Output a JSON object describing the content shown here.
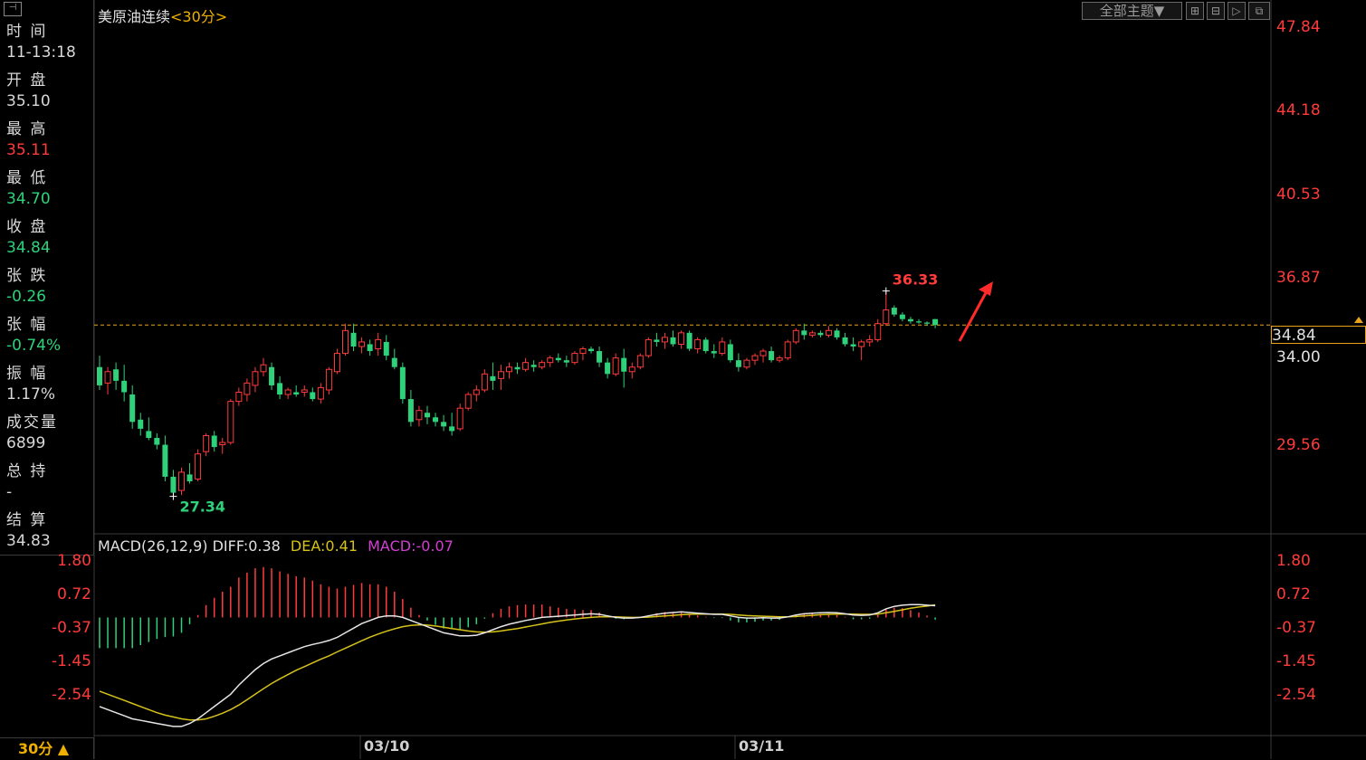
{
  "header": {
    "symbol": "美原油连续",
    "period_label": "<30分>",
    "theme_button": "全部主题▼"
  },
  "info_panel": {
    "time_label": "时 间",
    "time_value": "11-13:18",
    "open_label": "开 盘",
    "open_value": "35.10",
    "high_label": "最 高",
    "high_value": "35.11",
    "low_label": "最 低",
    "low_value": "34.70",
    "close_label": "收 盘",
    "close_value": "34.84",
    "change_label": "张 跌",
    "change_value": "-0.26",
    "change_pct_label": "张 幅",
    "change_pct_value": "-0.74%",
    "amplitude_label": "振 幅",
    "amplitude_value": "1.17%",
    "volume_label": "成交量",
    "volume_value": "6899",
    "open_interest_label": "总 持",
    "open_interest_value": "-",
    "settlement_label": "结 算",
    "settlement_value": "34.83"
  },
  "macd_header": {
    "params": "MACD(26,12,9)",
    "diff": "DIFF:0.38",
    "dea": "DEA:0.41",
    "macd": "MACD:-0.07"
  },
  "current_price_tag": "34.84",
  "period_button": "30分 ▲",
  "colors": {
    "up": "#ff3b3b",
    "down": "#2fd27a",
    "current_line": "#e8a31a",
    "diff_line": "#e6e6e6",
    "dea_line": "#d6c21a",
    "macd_text": "#d040d0",
    "annotation_arrow": "#ff2a2a"
  },
  "chart_data": [
    {
      "type": "candlestick",
      "x_tick_labels": [
        "03/10",
        "03/11"
      ],
      "y_tick_labels": [
        "47.84",
        "44.18",
        "40.53",
        "36.87",
        "34.00",
        "29.56"
      ],
      "ylim": [
        27.0,
        47.84
      ],
      "current_price": 34.84,
      "high_marker": "36.33",
      "low_marker": "27.34",
      "candles": [
        [
          33.0,
          33.5,
          32.0,
          32.2
        ],
        [
          32.3,
          33.0,
          31.8,
          32.8
        ],
        [
          32.9,
          33.2,
          32.0,
          32.4
        ],
        [
          32.4,
          33.1,
          31.5,
          31.9
        ],
        [
          31.8,
          32.2,
          30.3,
          30.6
        ],
        [
          30.7,
          31.0,
          30.0,
          30.3
        ],
        [
          30.2,
          30.8,
          29.8,
          29.9
        ],
        [
          29.9,
          30.1,
          29.4,
          29.6
        ],
        [
          29.6,
          30.0,
          28.0,
          28.2
        ],
        [
          28.2,
          28.5,
          27.34,
          27.5
        ],
        [
          27.6,
          28.6,
          27.4,
          28.4
        ],
        [
          28.3,
          28.8,
          27.9,
          28.0
        ],
        [
          28.1,
          29.4,
          28.0,
          29.2
        ],
        [
          29.3,
          30.1,
          29.1,
          30.0
        ],
        [
          30.0,
          30.2,
          29.3,
          29.5
        ],
        [
          29.6,
          29.9,
          29.2,
          29.7
        ],
        [
          29.7,
          31.6,
          29.6,
          31.5
        ],
        [
          31.5,
          32.1,
          31.3,
          31.9
        ],
        [
          31.8,
          32.5,
          31.5,
          32.3
        ],
        [
          32.2,
          33.0,
          31.9,
          32.8
        ],
        [
          32.8,
          33.4,
          32.6,
          33.1
        ],
        [
          33.0,
          33.2,
          32.0,
          32.2
        ],
        [
          32.3,
          32.6,
          31.6,
          31.8
        ],
        [
          31.8,
          32.1,
          31.6,
          32.0
        ],
        [
          31.9,
          32.2,
          31.7,
          31.8
        ],
        [
          31.9,
          32.2,
          31.7,
          32.0
        ],
        [
          31.9,
          32.1,
          31.5,
          31.6
        ],
        [
          31.6,
          32.3,
          31.4,
          32.1
        ],
        [
          32.0,
          33.0,
          31.8,
          32.9
        ],
        [
          32.8,
          33.8,
          32.7,
          33.6
        ],
        [
          33.6,
          34.9,
          33.5,
          34.6
        ],
        [
          34.5,
          34.9,
          33.7,
          33.9
        ],
        [
          33.9,
          34.3,
          33.6,
          34.1
        ],
        [
          34.0,
          34.2,
          33.5,
          33.7
        ],
        [
          33.8,
          34.5,
          33.5,
          34.2
        ],
        [
          34.1,
          34.4,
          33.3,
          33.5
        ],
        [
          33.4,
          33.8,
          32.9,
          33.0
        ],
        [
          33.0,
          33.2,
          31.4,
          31.6
        ],
        [
          31.6,
          32.0,
          30.4,
          30.6
        ],
        [
          30.7,
          31.3,
          30.4,
          31.1
        ],
        [
          31.0,
          31.3,
          30.5,
          30.8
        ],
        [
          30.8,
          31.0,
          30.4,
          30.6
        ],
        [
          30.6,
          30.9,
          30.2,
          30.4
        ],
        [
          30.4,
          31.0,
          30.0,
          30.2
        ],
        [
          30.3,
          31.4,
          30.2,
          31.2
        ],
        [
          31.2,
          31.9,
          31.1,
          31.8
        ],
        [
          31.8,
          32.2,
          31.5,
          32.0
        ],
        [
          32.0,
          32.9,
          31.9,
          32.7
        ],
        [
          32.6,
          33.2,
          32.0,
          32.4
        ],
        [
          32.5,
          33.1,
          32.0,
          32.8
        ],
        [
          32.8,
          33.2,
          32.5,
          33.0
        ],
        [
          33.0,
          33.2,
          32.7,
          32.9
        ],
        [
          32.9,
          33.4,
          32.8,
          33.2
        ],
        [
          33.1,
          33.3,
          32.8,
          33.0
        ],
        [
          33.0,
          33.3,
          32.9,
          33.2
        ],
        [
          33.2,
          33.5,
          33.0,
          33.4
        ],
        [
          33.4,
          33.6,
          33.2,
          33.3
        ],
        [
          33.3,
          33.5,
          33.0,
          33.2
        ],
        [
          33.2,
          33.7,
          33.1,
          33.6
        ],
        [
          33.6,
          33.9,
          33.3,
          33.8
        ],
        [
          33.8,
          33.9,
          33.6,
          33.7
        ],
        [
          33.7,
          33.9,
          33.0,
          33.2
        ],
        [
          33.2,
          33.4,
          32.5,
          32.7
        ],
        [
          32.7,
          33.6,
          32.6,
          33.4
        ],
        [
          33.4,
          33.8,
          32.1,
          32.8
        ],
        [
          32.8,
          33.2,
          32.5,
          33.0
        ],
        [
          33.0,
          33.6,
          32.9,
          33.5
        ],
        [
          33.5,
          34.3,
          33.4,
          34.2
        ],
        [
          34.2,
          34.5,
          33.9,
          34.1
        ],
        [
          34.1,
          34.5,
          33.8,
          34.3
        ],
        [
          34.3,
          34.6,
          33.9,
          34.0
        ],
        [
          34.0,
          34.6,
          33.8,
          34.5
        ],
        [
          34.5,
          34.6,
          33.7,
          33.8
        ],
        [
          33.8,
          34.3,
          33.6,
          34.2
        ],
        [
          34.2,
          34.3,
          33.6,
          33.7
        ],
        [
          33.7,
          34.0,
          33.4,
          33.6
        ],
        [
          33.6,
          34.3,
          33.5,
          34.1
        ],
        [
          34.0,
          34.2,
          33.2,
          33.3
        ],
        [
          33.3,
          33.6,
          32.8,
          33.0
        ],
        [
          33.0,
          33.4,
          32.9,
          33.3
        ],
        [
          33.3,
          33.6,
          33.1,
          33.5
        ],
        [
          33.5,
          33.8,
          33.2,
          33.7
        ],
        [
          33.7,
          33.9,
          33.2,
          33.3
        ],
        [
          33.3,
          33.5,
          33.2,
          33.4
        ],
        [
          33.4,
          34.2,
          33.3,
          34.1
        ],
        [
          34.1,
          34.7,
          34.0,
          34.6
        ],
        [
          34.6,
          34.9,
          34.2,
          34.4
        ],
        [
          34.4,
          34.6,
          34.3,
          34.5
        ],
        [
          34.5,
          34.6,
          34.3,
          34.4
        ],
        [
          34.4,
          34.8,
          34.3,
          34.6
        ],
        [
          34.6,
          34.7,
          34.2,
          34.3
        ],
        [
          34.3,
          34.5,
          33.9,
          34.0
        ],
        [
          34.0,
          34.3,
          33.7,
          33.9
        ],
        [
          33.9,
          34.2,
          33.3,
          34.1
        ],
        [
          34.1,
          34.4,
          33.9,
          34.2
        ],
        [
          34.2,
          35.1,
          34.1,
          34.9
        ],
        [
          34.9,
          36.33,
          34.8,
          35.5
        ],
        [
          35.6,
          35.7,
          35.2,
          35.3
        ],
        [
          35.3,
          35.4,
          35.0,
          35.1
        ],
        [
          35.1,
          35.2,
          34.9,
          35.0
        ],
        [
          35.0,
          35.1,
          34.9,
          34.95
        ],
        [
          34.95,
          35.0,
          34.8,
          34.9
        ],
        [
          35.1,
          35.11,
          34.7,
          34.84
        ]
      ]
    },
    {
      "type": "macd",
      "y_tick_labels": [
        "1.80",
        "0.72",
        "-0.37",
        "-1.45",
        "-2.54"
      ],
      "ylim": [
        -3.5,
        1.8
      ],
      "diff": [
        -2.9,
        -3.0,
        -3.1,
        -3.2,
        -3.3,
        -3.35,
        -3.4,
        -3.45,
        -3.5,
        -3.55,
        -3.55,
        -3.45,
        -3.3,
        -3.1,
        -2.9,
        -2.7,
        -2.5,
        -2.2,
        -1.95,
        -1.7,
        -1.5,
        -1.35,
        -1.25,
        -1.15,
        -1.05,
        -0.95,
        -0.88,
        -0.82,
        -0.75,
        -0.65,
        -0.5,
        -0.35,
        -0.2,
        -0.1,
        0.0,
        0.05,
        0.05,
        0.0,
        -0.1,
        -0.2,
        -0.3,
        -0.4,
        -0.5,
        -0.55,
        -0.6,
        -0.6,
        -0.58,
        -0.5,
        -0.4,
        -0.3,
        -0.22,
        -0.16,
        -0.1,
        -0.05,
        0.0,
        0.02,
        0.04,
        0.06,
        0.08,
        0.1,
        0.12,
        0.1,
        0.05,
        0.0,
        -0.02,
        -0.02,
        0.0,
        0.05,
        0.1,
        0.14,
        0.16,
        0.18,
        0.16,
        0.14,
        0.12,
        0.1,
        0.1,
        0.05,
        0.0,
        -0.02,
        -0.02,
        -0.01,
        -0.02,
        -0.02,
        0.02,
        0.08,
        0.12,
        0.14,
        0.15,
        0.16,
        0.15,
        0.12,
        0.08,
        0.07,
        0.08,
        0.15,
        0.28,
        0.36,
        0.4,
        0.42,
        0.42,
        0.4,
        0.38
      ],
      "dea": [
        -2.4,
        -2.5,
        -2.6,
        -2.7,
        -2.8,
        -2.9,
        -3.0,
        -3.1,
        -3.18,
        -3.24,
        -3.3,
        -3.34,
        -3.34,
        -3.3,
        -3.22,
        -3.12,
        -3.0,
        -2.85,
        -2.68,
        -2.5,
        -2.32,
        -2.15,
        -2.0,
        -1.86,
        -1.72,
        -1.6,
        -1.48,
        -1.36,
        -1.25,
        -1.12,
        -1.0,
        -0.88,
        -0.76,
        -0.64,
        -0.54,
        -0.45,
        -0.37,
        -0.3,
        -0.26,
        -0.24,
        -0.25,
        -0.28,
        -0.32,
        -0.36,
        -0.4,
        -0.44,
        -0.47,
        -0.48,
        -0.47,
        -0.44,
        -0.4,
        -0.36,
        -0.31,
        -0.26,
        -0.21,
        -0.16,
        -0.12,
        -0.08,
        -0.05,
        -0.02,
        0.0,
        0.02,
        0.02,
        0.02,
        0.01,
        0.0,
        0.0,
        0.01,
        0.03,
        0.05,
        0.07,
        0.09,
        0.1,
        0.11,
        0.11,
        0.11,
        0.11,
        0.1,
        0.08,
        0.06,
        0.05,
        0.04,
        0.03,
        0.02,
        0.02,
        0.03,
        0.05,
        0.07,
        0.09,
        0.1,
        0.11,
        0.11,
        0.11,
        0.1,
        0.1,
        0.11,
        0.15,
        0.2,
        0.25,
        0.3,
        0.34,
        0.37,
        0.41
      ],
      "macd_hist": [
        -1.0,
        -1.0,
        -1.0,
        -1.0,
        -1.0,
        -0.9,
        -0.8,
        -0.7,
        -0.64,
        -0.62,
        -0.5,
        -0.22,
        0.08,
        0.4,
        0.64,
        0.84,
        1.0,
        1.3,
        1.46,
        1.6,
        1.64,
        1.6,
        1.5,
        1.42,
        1.34,
        1.3,
        1.2,
        1.08,
        1.0,
        0.94,
        1.0,
        1.06,
        1.12,
        1.08,
        1.08,
        1.0,
        0.84,
        0.6,
        0.32,
        0.08,
        -0.1,
        -0.24,
        -0.36,
        -0.38,
        -0.4,
        -0.32,
        -0.22,
        -0.04,
        0.14,
        0.28,
        0.36,
        0.4,
        0.42,
        0.42,
        0.42,
        0.36,
        0.32,
        0.28,
        0.26,
        0.24,
        0.24,
        0.16,
        0.06,
        -0.04,
        -0.06,
        -0.04,
        0.0,
        0.08,
        0.14,
        0.18,
        0.18,
        0.18,
        0.12,
        0.06,
        0.02,
        -0.02,
        -0.02,
        -0.1,
        -0.16,
        -0.16,
        -0.14,
        -0.1,
        -0.1,
        -0.08,
        0.0,
        0.1,
        0.14,
        0.14,
        0.12,
        0.12,
        0.08,
        0.02,
        -0.06,
        -0.06,
        -0.04,
        0.08,
        0.26,
        0.32,
        0.3,
        0.24,
        0.16,
        0.06,
        -0.07
      ]
    }
  ]
}
